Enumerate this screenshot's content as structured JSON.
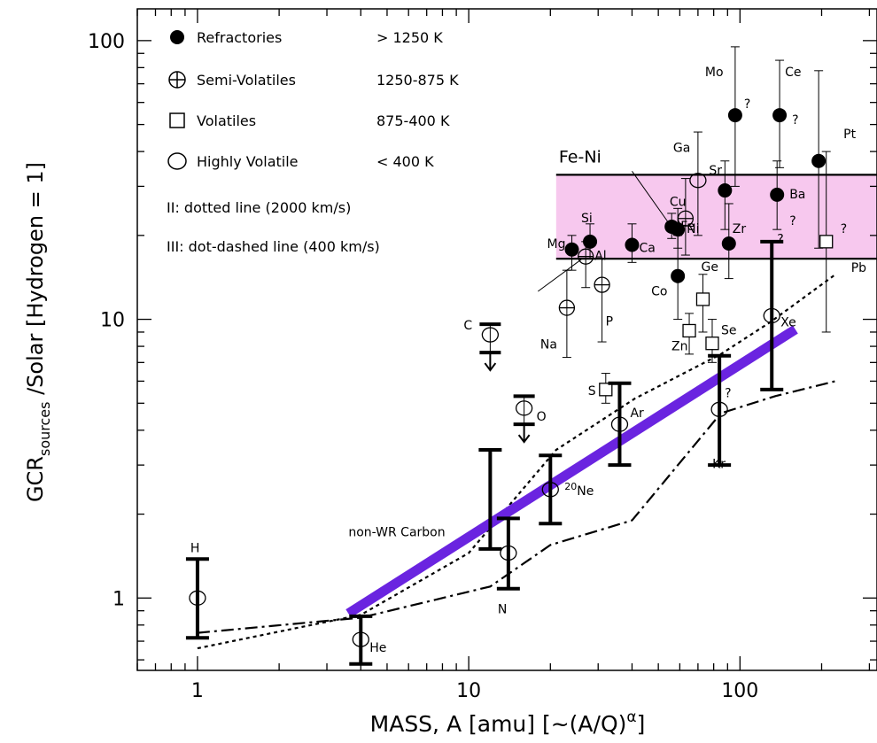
{
  "chart_data": {
    "type": "scatter",
    "xscale": "log",
    "yscale": "log",
    "xlim": [
      0.6,
      320
    ],
    "ylim": [
      0.55,
      130
    ],
    "grid": false,
    "xlabel": "MASS, A [amu]   [~(A/Q)α]",
    "xlabel_main": "MASS, A [amu]   [~(A/Q)",
    "xlabel_sup": "α",
    "xlabel_end": "]",
    "ylabel": "GCRsources /Solar [Hydrogen = 1]",
    "ylabel_main": "GCR",
    "ylabel_sub": "sources",
    "ylabel_end": " /Solar [Hydrogen = 1]",
    "xticks": [
      {
        "v": 1,
        "label": "1"
      },
      {
        "v": 10,
        "label": "10"
      },
      {
        "v": 100,
        "label": "100"
      }
    ],
    "yticks": [
      {
        "v": 1,
        "label": "1"
      },
      {
        "v": 10,
        "label": "10"
      },
      {
        "v": 100,
        "label": "100"
      }
    ],
    "legend": {
      "position": "top-left",
      "entries": [
        {
          "symbol": "filled",
          "label": "Refractories",
          "range": "> 1250 K"
        },
        {
          "symbol": "crossed",
          "label": "Semi-Volatiles",
          "range": "1250-875 K"
        },
        {
          "symbol": "square",
          "label": "Volatiles",
          "range": "875-400 K"
        },
        {
          "symbol": "open",
          "label": "Highly Volatile",
          "range": "< 400 K"
        }
      ],
      "notes": [
        "II: dotted line (2000 km/s)",
        "III: dot-dashed line (400 km/s)"
      ]
    },
    "band": {
      "label": "Fe-Ni",
      "ymin": 16.5,
      "ymax": 33,
      "xmin": 21,
      "xmax": 320,
      "color": "#f7c8ee"
    },
    "fit_line": {
      "color": "#6a24e0",
      "points": [
        [
          3.6,
          0.88
        ],
        [
          160,
          9.2
        ]
      ]
    },
    "dotted_line": [
      [
        1,
        0.66
      ],
      [
        4,
        0.87
      ],
      [
        10,
        1.45
      ],
      [
        21,
        3.4
      ],
      [
        41,
        5.2
      ],
      [
        85,
        7.5
      ],
      [
        130,
        9.8
      ],
      [
        225,
        14.5
      ]
    ],
    "dashdot_line": [
      [
        1,
        0.75
      ],
      [
        4,
        0.85
      ],
      [
        12,
        1.1
      ],
      [
        20,
        1.55
      ],
      [
        40,
        1.9
      ],
      [
        85,
        4.6
      ],
      [
        135,
        5.3
      ],
      [
        225,
        6.0
      ]
    ],
    "points": [
      {
        "label": "Mo",
        "x": 96,
        "y": 54,
        "lo": 30,
        "hi": 95,
        "sym": "filled",
        "q": "?"
      },
      {
        "label": "Ce",
        "x": 140,
        "y": 54,
        "lo": 35,
        "hi": 85,
        "sym": "filled",
        "q": "?"
      },
      {
        "label": "Pt",
        "x": 195,
        "y": 37,
        "lo": 18,
        "hi": 78,
        "sym": "filled",
        "q": ""
      },
      {
        "label": "Sr",
        "x": 88,
        "y": 29,
        "lo": 21,
        "hi": 37,
        "sym": "filled",
        "q": ""
      },
      {
        "label": "Ba",
        "x": 137,
        "y": 28,
        "lo": 21,
        "hi": 37,
        "sym": "filled",
        "q": "?"
      },
      {
        "label": "Zr",
        "x": 91,
        "y": 18.7,
        "lo": 14,
        "hi": 26,
        "sym": "filled",
        "q": ""
      },
      {
        "label": "Mg",
        "x": 24,
        "y": 17.8,
        "lo": 15,
        "hi": 20,
        "sym": "filled",
        "q": ""
      },
      {
        "label": "Si",
        "x": 28,
        "y": 19,
        "lo": 16.5,
        "hi": 22,
        "sym": "filled",
        "q": ""
      },
      {
        "label": "Al",
        "x": 27,
        "y": 16.8,
        "lo": 13,
        "hi": 19,
        "sym": "crossed",
        "q": ""
      },
      {
        "label": "Ca",
        "x": 40,
        "y": 18.5,
        "lo": 16,
        "hi": 22,
        "sym": "filled",
        "q": ""
      },
      {
        "label": "Fe",
        "x": 56,
        "y": 21.5,
        "lo": 19.5,
        "hi": 24,
        "sym": "filled",
        "q": ""
      },
      {
        "label": "Co",
        "x": 59,
        "y": 14.3,
        "lo": 10,
        "hi": 20,
        "sym": "filled",
        "q": ""
      },
      {
        "label": "Ni",
        "x": 59,
        "y": 21,
        "lo": 18,
        "hi": 25,
        "sym": "filled",
        "q": ""
      },
      {
        "label": "Cu",
        "x": 63,
        "y": 23,
        "lo": 17,
        "hi": 32,
        "sym": "crossed",
        "q": ""
      },
      {
        "label": "Ga",
        "x": 70,
        "y": 31.5,
        "lo": 20,
        "hi": 47,
        "sym": "open",
        "q": ""
      },
      {
        "label": "Ge",
        "x": 73,
        "y": 11.8,
        "lo": 9,
        "hi": 14.5,
        "sym": "square",
        "q": ""
      },
      {
        "label": "Zn",
        "x": 65,
        "y": 9.1,
        "lo": 7.5,
        "hi": 10.5,
        "sym": "square",
        "q": ""
      },
      {
        "label": "Se",
        "x": 79,
        "y": 8.2,
        "lo": 7,
        "hi": 10,
        "sym": "square",
        "q": ""
      },
      {
        "label": "Pb",
        "x": 208,
        "y": 19,
        "lo": 9,
        "hi": 40,
        "sym": "square",
        "q": "?"
      },
      {
        "label": "Na",
        "x": 23,
        "y": 11,
        "lo": 7.3,
        "hi": 15,
        "sym": "crossed",
        "q": ""
      },
      {
        "label": "P",
        "x": 31,
        "y": 13.3,
        "lo": 8.3,
        "hi": 16.5,
        "sym": "crossed",
        "q": ""
      },
      {
        "label": "S",
        "x": 32,
        "y": 5.6,
        "lo": 5,
        "hi": 6.4,
        "sym": "square",
        "q": ""
      },
      {
        "label": "C",
        "x": 12,
        "y": 8.8,
        "lo": 7.6,
        "hi": 9.6,
        "sym": "open",
        "q": "",
        "upper_limit": true
      },
      {
        "label": "O",
        "x": 16,
        "y": 4.8,
        "lo": 4.2,
        "hi": 5.3,
        "sym": "open",
        "q": "",
        "upper_limit": true
      },
      {
        "label": "H",
        "x": 1,
        "y": 1,
        "lo": 0.72,
        "hi": 1.38,
        "sym": "open",
        "q": "",
        "bold": true
      },
      {
        "label": "He",
        "x": 4,
        "y": 0.71,
        "lo": 0.58,
        "hi": 0.86,
        "sym": "open",
        "q": "",
        "bold": true
      },
      {
        "label": "N",
        "x": 14,
        "y": 1.45,
        "lo": 1.08,
        "hi": 1.93,
        "sym": "open",
        "q": "",
        "bold": true
      },
      {
        "label": "non-WR Carbon",
        "x": 12,
        "y": 2.3,
        "lo": 1.5,
        "hi": 3.4,
        "sym": "none",
        "q": "",
        "bold": true
      },
      {
        "label": "20Ne",
        "x": 20,
        "y": 2.45,
        "lo": 1.85,
        "hi": 3.25,
        "sym": "open",
        "q": "",
        "bold": true
      },
      {
        "label": "Ar",
        "x": 36,
        "y": 4.2,
        "lo": 3.0,
        "hi": 5.9,
        "sym": "open",
        "q": "",
        "bold": true
      },
      {
        "label": "Kr",
        "x": 84,
        "y": 4.75,
        "lo": 3.0,
        "hi": 7.4,
        "sym": "open",
        "q": "?",
        "bold": true
      },
      {
        "label": "Xe",
        "x": 131,
        "y": 10.3,
        "lo": 5.6,
        "hi": 19,
        "sym": "open",
        "q": "?",
        "bold": true
      }
    ]
  }
}
